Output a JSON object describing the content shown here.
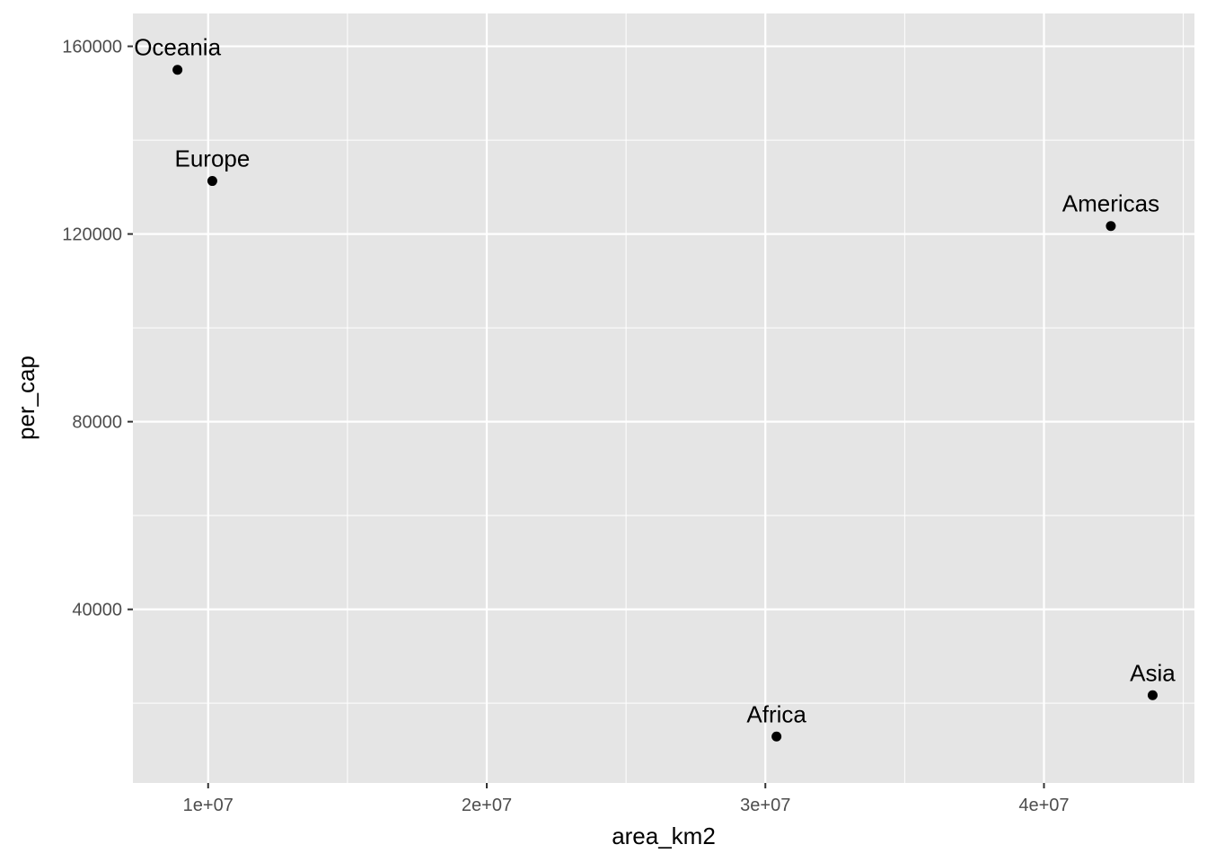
{
  "chart_data": {
    "type": "scatter",
    "title": "",
    "xlabel": "area_km2",
    "ylabel": "per_cap",
    "xlim": [
      7300000,
      45400000
    ],
    "ylim": [
      3000,
      167000
    ],
    "x_ticks": [
      10000000,
      20000000,
      30000000,
      40000000
    ],
    "x_tick_labels": [
      "1e+07",
      "2e+07",
      "3e+07",
      "4e+07"
    ],
    "x_minor_ticks": [
      15000000,
      25000000,
      35000000,
      45000000
    ],
    "y_ticks": [
      40000,
      80000,
      120000,
      160000
    ],
    "y_tick_labels": [
      "40000",
      "80000",
      "120000",
      "160000"
    ],
    "y_minor_ticks": [
      20000,
      60000,
      100000,
      140000
    ],
    "grid": true,
    "legend": "none",
    "colors": {
      "panel": "#e5e5e5",
      "grid": "#ffffff",
      "point": "#000000"
    },
    "points": [
      {
        "label": "Oceania",
        "x": 8900000,
        "y": 155000
      },
      {
        "label": "Europe",
        "x": 10150000,
        "y": 131300
      },
      {
        "label": "Americas",
        "x": 42400000,
        "y": 121700
      },
      {
        "label": "Africa",
        "x": 30400000,
        "y": 12900
      },
      {
        "label": "Asia",
        "x": 43900000,
        "y": 21700
      }
    ]
  }
}
